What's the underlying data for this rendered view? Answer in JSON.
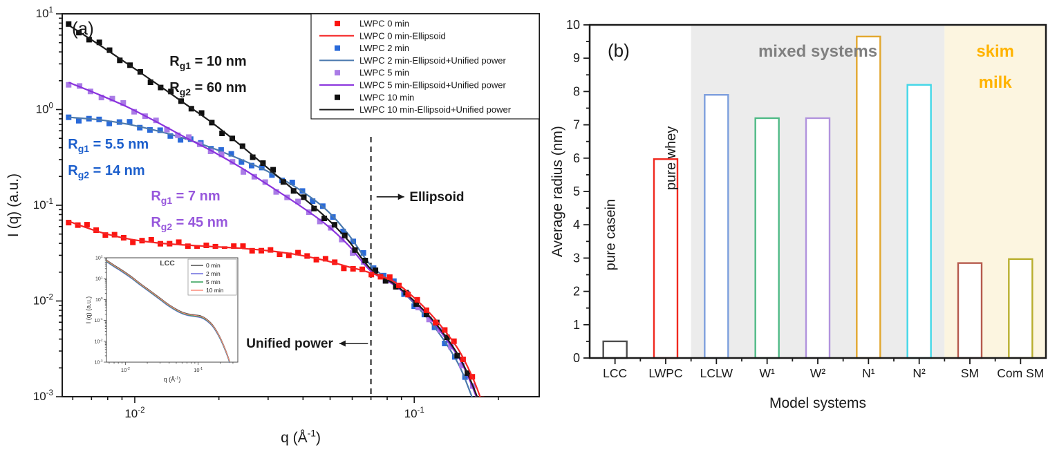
{
  "figure": {
    "background": "#ffffff"
  },
  "chart_data": [
    {
      "id": "panel_a",
      "type": "line",
      "panel_label": "(a)",
      "xlabel": {
        "pre": "q (Å",
        "sup": "-1",
        "post": ")"
      },
      "ylabel": "I (q) (a.u.)",
      "xscale": "log",
      "yscale": "log",
      "xlim": [
        0.0055,
        0.28
      ],
      "ylim": [
        0.001,
        10
      ],
      "x_tick_exponents": [
        -2,
        -1
      ],
      "y_tick_exponents": [
        1,
        0,
        -1,
        -2,
        -3
      ],
      "dashed_line_x": 0.07,
      "series": [
        {
          "name": "LWPC 2 min",
          "fit_name": "LWPC 2 min-Ellipsoid+Unified power",
          "marker_color": "#2a6ad9",
          "line_color": "#4b79ae",
          "marker_q": [
            0.0058,
            0.152
          ],
          "marker_count": 40,
          "anchors": [
            [
              0.0058,
              0.83
            ],
            [
              0.0075,
              0.78
            ],
            [
              0.0095,
              0.7
            ],
            [
              0.012,
              0.6
            ],
            [
              0.015,
              0.5
            ],
            [
              0.019,
              0.395
            ],
            [
              0.024,
              0.3
            ],
            [
              0.03,
              0.225
            ],
            [
              0.038,
              0.152
            ],
            [
              0.048,
              0.092
            ],
            [
              0.058,
              0.05
            ],
            [
              0.07,
              0.0235
            ],
            [
              0.085,
              0.015
            ],
            [
              0.1,
              0.0094
            ],
            [
              0.115,
              0.0059
            ],
            [
              0.13,
              0.0036
            ],
            [
              0.145,
              0.0021
            ],
            [
              0.157,
              0.0012
            ],
            [
              0.167,
              0.00072
            ],
            [
              0.174,
              0.00045
            ]
          ]
        },
        {
          "name": "LWPC 5 min",
          "fit_name": "LWPC 5 min-Ellipsoid+Unified power",
          "marker_color": "#aa7ce6",
          "line_color": "#8a33dd",
          "marker_q": [
            0.0058,
            0.162
          ],
          "marker_count": 38,
          "anchors": [
            [
              0.0058,
              1.92
            ],
            [
              0.0075,
              1.42
            ],
            [
              0.0095,
              1.05
            ],
            [
              0.012,
              0.74
            ],
            [
              0.015,
              0.52
            ],
            [
              0.019,
              0.365
            ],
            [
              0.024,
              0.247
            ],
            [
              0.03,
              0.163
            ],
            [
              0.038,
              0.104
            ],
            [
              0.048,
              0.064
            ],
            [
              0.058,
              0.0385
            ],
            [
              0.07,
              0.0205
            ],
            [
              0.085,
              0.0146
            ],
            [
              0.1,
              0.0098
            ],
            [
              0.115,
              0.0064
            ],
            [
              0.13,
              0.004
            ],
            [
              0.145,
              0.0025
            ],
            [
              0.158,
              0.00148
            ],
            [
              0.17,
              0.00085
            ],
            [
              0.178,
              0.00052
            ]
          ]
        },
        {
          "name": "LWPC 10 min",
          "fit_name": "LWPC 10 min-Ellipsoid+Unified power",
          "marker_color": "#0f0f0f",
          "line_color": "#1c1c1c",
          "marker_q": [
            0.0058,
            0.155
          ],
          "marker_count": 40,
          "anchors": [
            [
              0.0058,
              7.6
            ],
            [
              0.0075,
              4.7
            ],
            [
              0.0095,
              2.95
            ],
            [
              0.012,
              1.85
            ],
            [
              0.015,
              1.17
            ],
            [
              0.019,
              0.72
            ],
            [
              0.024,
              0.42
            ],
            [
              0.03,
              0.243
            ],
            [
              0.038,
              0.136
            ],
            [
              0.048,
              0.076
            ],
            [
              0.058,
              0.043
            ],
            [
              0.07,
              0.0215
            ],
            [
              0.085,
              0.015
            ],
            [
              0.1,
              0.01
            ],
            [
              0.115,
              0.0066
            ],
            [
              0.13,
              0.0042
            ],
            [
              0.145,
              0.0026
            ],
            [
              0.158,
              0.00155
            ],
            [
              0.17,
              0.0009
            ],
            [
              0.178,
              0.00055
            ]
          ]
        },
        {
          "name": "LWPC 0 min",
          "fit_name": "LWPC 0 min-Ellipsoid",
          "marker_color": "#fb1410",
          "line_color": "#f52525",
          "marker_q": [
            0.0058,
            0.174
          ],
          "marker_count": 46,
          "anchors": [
            [
              0.0058,
              0.068
            ],
            [
              0.0075,
              0.0525
            ],
            [
              0.0095,
              0.0445
            ],
            [
              0.012,
              0.0405
            ],
            [
              0.015,
              0.0385
            ],
            [
              0.019,
              0.037
            ],
            [
              0.024,
              0.0355
            ],
            [
              0.03,
              0.0335
            ],
            [
              0.038,
              0.0305
            ],
            [
              0.048,
              0.0265
            ],
            [
              0.058,
              0.0228
            ],
            [
              0.07,
              0.0196
            ],
            [
              0.085,
              0.0158
            ],
            [
              0.1,
              0.0108
            ],
            [
              0.115,
              0.0072
            ],
            [
              0.13,
              0.0047
            ],
            [
              0.145,
              0.003
            ],
            [
              0.16,
              0.0017
            ],
            [
              0.172,
              0.001
            ],
            [
              0.182,
              0.00058
            ]
          ]
        }
      ],
      "legend": {
        "entries": [
          {
            "label": "LWPC 0 min",
            "type": "marker",
            "color": "#fb1410"
          },
          {
            "label": "LWPC 0 min-Ellipsoid",
            "type": "line",
            "color": "#f52525"
          },
          {
            "label": "LWPC 2 min",
            "type": "marker",
            "color": "#2a6ad9"
          },
          {
            "label": "LWPC 2 min-Ellipsoid+Unified power",
            "type": "line",
            "color": "#4b79ae"
          },
          {
            "label": "LWPC 5 min",
            "type": "marker",
            "color": "#aa7ce6"
          },
          {
            "label": "LWPC 5 min-Ellipsoid+Unified power",
            "type": "line",
            "color": "#8a33dd"
          },
          {
            "label": "LWPC 10 min",
            "type": "marker",
            "color": "#0f0f0f"
          },
          {
            "label": "LWPC 10 min-Ellipsoid+Unified power",
            "type": "line",
            "color": "#1c1c1c"
          }
        ]
      },
      "annotations": [
        {
          "id": "rg-black",
          "color": "#1a1a1a",
          "fx": 0.225,
          "fy": 0.135,
          "lines": [
            {
              "pre": "R",
              "sub": "g1",
              "rest": " = 10 nm"
            },
            {
              "pre": "R",
              "sub": "g2",
              "rest": " = 60 nm"
            }
          ]
        },
        {
          "id": "rg-blue",
          "color": "#1b5ecc",
          "fx": 0.012,
          "fy": 0.352,
          "lines": [
            {
              "pre": "R",
              "sub": "g1",
              "rest": " = 5.5 nm"
            },
            {
              "pre": "R",
              "sub": "g2",
              "rest": " = 14 nm"
            }
          ]
        },
        {
          "id": "rg-purple",
          "color": "#9757dc",
          "fx": 0.186,
          "fy": 0.487,
          "lines": [
            {
              "pre": "R",
              "sub": "g1",
              "rest": " = 7 nm"
            },
            {
              "pre": "R",
              "sub": "g2",
              "rest": " = 45 nm"
            }
          ]
        }
      ],
      "arrow_labels": [
        {
          "text": "Ellipsoid",
          "color": "#1a1a1a",
          "fy": 0.478,
          "fx_tail": 0.659,
          "fx_head": 0.717,
          "fx_text": 0.728,
          "align": "start"
        },
        {
          "text": "Unified power",
          "color": "#1a1a1a",
          "fy": 0.861,
          "fx_tail": 0.641,
          "fx_head": 0.581,
          "fx_text": 0.568,
          "align": "end"
        }
      ],
      "inset": {
        "title": "LCC",
        "xlabel": {
          "pre": "q (Å",
          "sup": "-1",
          "post": ")"
        },
        "ylabel": "I (q) (a.u.)",
        "xlim": [
          0.0055,
          0.35
        ],
        "ylim": [
          0.001,
          100
        ],
        "x_tick_exponents": [
          -2,
          -1
        ],
        "y_tick_exponents": [
          2,
          1,
          0,
          -1,
          -2,
          -3
        ],
        "legend": [
          {
            "label": "0 min",
            "color": "#4d4d4d"
          },
          {
            "label": "2 min",
            "color": "#6b6bdd"
          },
          {
            "label": "5 min",
            "color": "#2f9e55"
          },
          {
            "label": "10 min",
            "color": "#fb8a7a"
          }
        ],
        "offsets": [
          0.05,
          -0.04,
          -0.01,
          0.02
        ],
        "anchors": [
          [
            0.0055,
            70
          ],
          [
            0.007,
            40
          ],
          [
            0.009,
            23
          ],
          [
            0.012,
            11.5
          ],
          [
            0.016,
            5.3
          ],
          [
            0.022,
            2.35
          ],
          [
            0.03,
            1.05
          ],
          [
            0.04,
            0.5
          ],
          [
            0.055,
            0.26
          ],
          [
            0.07,
            0.19
          ],
          [
            0.09,
            0.165
          ],
          [
            0.11,
            0.145
          ],
          [
            0.13,
            0.105
          ],
          [
            0.16,
            0.052
          ],
          [
            0.2,
            0.014
          ],
          [
            0.24,
            0.0032
          ],
          [
            0.27,
            0.001
          ]
        ]
      }
    },
    {
      "id": "panel_b",
      "type": "bar",
      "panel_label": "(b)",
      "categories": [
        "LCC",
        "LWPC",
        "LCLW",
        "W¹",
        "W²",
        "N¹",
        "N²",
        "SM",
        "Com SM"
      ],
      "values": [
        0.5,
        5.97,
        7.9,
        7.2,
        7.2,
        9.65,
        8.2,
        2.85,
        2.97
      ],
      "bar_colors": [
        "#4d4d4d",
        "#f0281e",
        "#7d9fdd",
        "#4fba86",
        "#b193dd",
        "#e2a72e",
        "#43d7e8",
        "#b55a4d",
        "#b8ae2e"
      ],
      "bar_fill": "#ffffff",
      "xlabel": "Model systems",
      "ylabel": "Average radius (nm)",
      "ylim": [
        0,
        10
      ],
      "y_major_step": 1,
      "y_minor_step": 0.5,
      "bands": [
        {
          "label_lines": [
            "mixed systems"
          ],
          "from_boundary": 2,
          "to_boundary": 7,
          "bg": "#ececec",
          "text_color": "#808080"
        },
        {
          "label_lines": [
            "skim",
            "milk"
          ],
          "from_boundary": 7,
          "to_boundary": 9,
          "bg": "#fcf5e0",
          "text_color": "#ffb300"
        }
      ],
      "rotated_labels": [
        {
          "text": "pure casein",
          "cat": 0,
          "center_value": 3.7,
          "dx": 0
        },
        {
          "text": "pure whey",
          "cat": 1,
          "center_value": 6.0,
          "dx": 14
        }
      ]
    }
  ]
}
